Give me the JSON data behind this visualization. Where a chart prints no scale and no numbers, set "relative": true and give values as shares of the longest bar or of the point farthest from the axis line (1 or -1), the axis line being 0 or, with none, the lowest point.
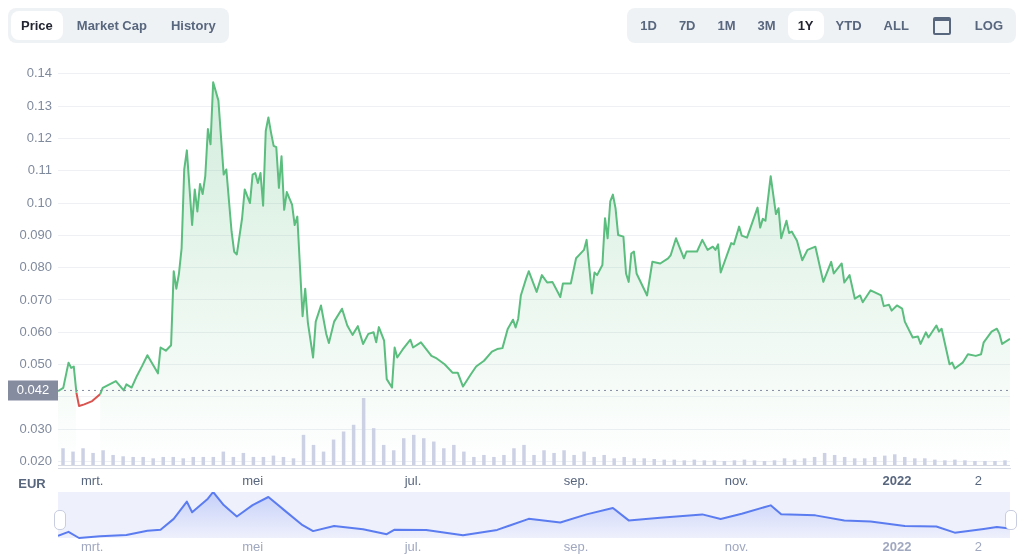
{
  "chart_data": [
    {
      "type": "area",
      "ylabel": "EUR",
      "annotations": [
        "Price",
        "Market Cap",
        "History",
        "1D",
        "7D",
        "1M",
        "3M",
        "1Y",
        "YTD",
        "ALL",
        "LOG"
      ],
      "xlim": [
        "2021-02-16",
        "2022-02-13"
      ],
      "xticks": [
        {
          "value": "2021-03-01",
          "label": "mrt."
        },
        {
          "value": "2021-05-01",
          "label": "mei"
        },
        {
          "value": "2021-07-01",
          "label": "jul."
        },
        {
          "value": "2021-09-01",
          "label": "sep."
        },
        {
          "value": "2021-11-01",
          "label": "nov."
        },
        {
          "value": "2022-01-01",
          "label": "2022"
        },
        {
          "value": "2022-02-01",
          "label": "2"
        }
      ],
      "ylim": [
        0.018,
        0.14
      ],
      "yticks": [
        {
          "value": 0.02,
          "label": "0.020"
        },
        {
          "value": 0.03,
          "label": "0.030"
        },
        {
          "value": 0.04,
          "label": null
        },
        {
          "value": 0.05,
          "label": "0.050"
        },
        {
          "value": 0.06,
          "label": "0.060"
        },
        {
          "value": 0.07,
          "label": "0.070"
        },
        {
          "value": 0.08,
          "label": "0.080"
        },
        {
          "value": 0.09,
          "label": "0.090"
        },
        {
          "value": 0.1,
          "label": "0.10"
        },
        {
          "value": 0.11,
          "label": "0.11"
        },
        {
          "value": 0.12,
          "label": "0.12"
        },
        {
          "value": 0.13,
          "label": "0.13"
        },
        {
          "value": 0.14,
          "label": "0.14"
        }
      ],
      "grid": "y",
      "legend": false,
      "ref_lines": [
        {
          "axis": "y",
          "value": 0.042,
          "label": "0.042",
          "color": "#858ca0",
          "line_style": "dotted"
        }
      ],
      "series": [
        {
          "type": "area",
          "color": "#5bbd7e",
          "x": [
            "2021-02-16",
            "2021-02-18",
            "2021-02-20",
            "2021-02-21",
            "2021-02-22",
            "2021-02-23",
            "2021-02-24",
            "2021-02-26",
            "2021-03-01",
            "2021-03-04",
            "2021-03-05",
            "2021-03-10",
            "2021-03-13",
            "2021-03-14",
            "2021-03-16",
            "2021-03-18",
            "2021-03-20",
            "2021-03-22",
            "2021-03-24",
            "2021-03-26",
            "2021-03-27",
            "2021-03-29",
            "2021-03-31",
            "2021-04-01",
            "2021-04-02",
            "2021-04-03",
            "2021-04-04",
            "2021-04-05",
            "2021-04-06",
            "2021-04-08",
            "2021-04-09",
            "2021-04-10",
            "2021-04-11",
            "2021-04-12",
            "2021-04-13",
            "2021-04-14",
            "2021-04-15",
            "2021-04-16",
            "2021-04-18",
            "2021-04-20",
            "2021-04-21",
            "2021-04-23",
            "2021-04-24",
            "2021-04-25",
            "2021-04-27",
            "2021-04-28",
            "2021-04-30",
            "2021-05-01",
            "2021-05-02",
            "2021-05-03",
            "2021-05-04",
            "2021-05-05",
            "2021-05-06",
            "2021-05-07",
            "2021-05-08",
            "2021-05-09",
            "2021-05-10",
            "2021-05-11",
            "2021-05-12",
            "2021-05-13",
            "2021-05-14",
            "2021-05-16",
            "2021-05-17",
            "2021-05-18",
            "2021-05-20",
            "2021-05-21",
            "2021-05-22",
            "2021-05-24",
            "2021-05-25",
            "2021-05-27",
            "2021-05-29",
            "2021-05-30",
            "2021-06-01",
            "2021-06-04",
            "2021-06-06",
            "2021-06-08",
            "2021-06-10",
            "2021-06-12",
            "2021-06-14",
            "2021-06-16",
            "2021-06-17",
            "2021-06-18",
            "2021-06-20",
            "2021-06-21",
            "2021-06-23",
            "2021-06-24",
            "2021-06-25",
            "2021-06-27",
            "2021-06-30",
            "2021-07-01",
            "2021-07-04",
            "2021-07-06",
            "2021-07-08",
            "2021-07-10",
            "2021-07-13",
            "2021-07-16",
            "2021-07-18",
            "2021-07-20",
            "2021-07-23",
            "2021-07-25",
            "2021-07-28",
            "2021-07-31",
            "2021-08-02",
            "2021-08-04",
            "2021-08-06",
            "2021-08-08",
            "2021-08-09",
            "2021-08-10",
            "2021-08-11",
            "2021-08-13",
            "2021-08-14",
            "2021-08-17",
            "2021-08-19",
            "2021-08-21",
            "2021-08-23",
            "2021-08-26",
            "2021-08-27",
            "2021-08-30",
            "2021-09-01",
            "2021-09-04",
            "2021-09-05",
            "2021-09-07",
            "2021-09-08",
            "2021-09-09",
            "2021-09-11",
            "2021-09-12",
            "2021-09-13",
            "2021-09-14",
            "2021-09-15",
            "2021-09-16",
            "2021-09-17",
            "2021-09-19",
            "2021-09-20",
            "2021-09-21",
            "2021-09-22",
            "2021-09-23",
            "2021-09-24",
            "2021-09-28",
            "2021-09-30",
            "2021-10-03",
            "2021-10-06",
            "2021-10-07",
            "2021-10-09",
            "2021-10-12",
            "2021-10-13",
            "2021-10-17",
            "2021-10-19",
            "2021-10-21",
            "2021-10-23",
            "2021-10-24",
            "2021-10-25",
            "2021-10-26",
            "2021-10-30",
            "2021-10-31",
            "2021-11-02",
            "2021-11-03",
            "2021-11-05",
            "2021-11-09",
            "2021-11-10",
            "2021-11-11",
            "2021-11-12",
            "2021-11-14",
            "2021-11-16",
            "2021-11-17",
            "2021-11-18",
            "2021-11-20",
            "2021-11-21",
            "2021-11-22",
            "2021-11-24",
            "2021-11-26",
            "2021-11-28",
            "2021-12-01",
            "2021-12-04",
            "2021-12-07",
            "2021-12-08",
            "2021-12-11",
            "2021-12-12",
            "2021-12-14",
            "2021-12-16",
            "2021-12-18",
            "2021-12-19",
            "2021-12-22",
            "2021-12-24",
            "2021-12-26",
            "2021-12-27",
            "2021-12-29",
            "2021-12-30",
            "2022-01-01",
            "2022-01-03",
            "2022-01-04",
            "2022-01-07",
            "2022-01-09",
            "2022-01-10",
            "2022-01-12",
            "2022-01-13",
            "2022-01-16",
            "2022-01-17",
            "2022-01-18",
            "2022-01-21",
            "2022-01-22",
            "2022-01-23",
            "2022-01-26",
            "2022-01-28",
            "2022-01-31",
            "2022-02-02",
            "2022-02-03",
            "2022-02-06",
            "2022-02-08",
            "2022-02-09",
            "2022-02-10",
            "2022-02-13"
          ],
          "values": [
            0.0418,
            0.0428,
            0.0506,
            0.049,
            0.0494,
            0.0413,
            null,
            null,
            null,
            0.0408,
            0.0428,
            0.0449,
            0.042,
            0.0439,
            0.0429,
            0.0465,
            0.0496,
            0.0529,
            0.0501,
            0.0473,
            0.0553,
            0.0543,
            0.056,
            0.0789,
            0.0735,
            0.0782,
            0.086,
            0.1104,
            0.1163,
            0.0932,
            0.1042,
            0.0974,
            0.1059,
            0.1028,
            0.1083,
            0.1229,
            0.1182,
            0.1374,
            0.1317,
            0.1088,
            0.1104,
            0.0912,
            0.0849,
            0.0841,
            0.0953,
            0.1042,
            0.1,
            0.1088,
            0.1093,
            0.1062,
            0.1093,
            0.0992,
            0.1223,
            0.1265,
            0.1218,
            0.1177,
            0.1173,
            0.1047,
            0.1145,
            0.0979,
            0.1034,
            0.0995,
            0.0932,
            0.0958,
            0.065,
            0.0735,
            0.0631,
            0.0522,
            0.0633,
            0.0683,
            0.0595,
            0.0567,
            0.0633,
            0.0673,
            0.0621,
            0.0592,
            0.0619,
            0.0564,
            0.0595,
            0.06,
            0.0569,
            0.0616,
            0.0574,
            0.0455,
            0.0429,
            0.0553,
            0.0522,
            0.0546,
            0.0577,
            0.0553,
            0.0569,
            0.0548,
            0.0527,
            0.0519,
            0.0501,
            0.0475,
            0.0475,
            0.0432,
            0.047,
            0.0494,
            0.0512,
            0.054,
            0.0548,
            0.0551,
            0.061,
            0.0639,
            0.0615,
            0.0642,
            0.0714,
            0.0766,
            0.0789,
            0.0725,
            0.0777,
            0.0754,
            0.0756,
            0.0709,
            0.0751,
            0.0751,
            0.0829,
            0.0855,
            0.0886,
            0.072,
            0.0785,
            0.0777,
            0.0808,
            0.0953,
            0.0891,
            0.1005,
            0.1026,
            0.0984,
            0.0901,
            0.0896,
            0.0782,
            0.0756,
            0.0844,
            0.085,
            0.0782,
            0.0714,
            0.0818,
            0.0813,
            0.0829,
            0.0839,
            0.0891,
            0.0829,
            0.085,
            0.085,
            0.0886,
            0.0855,
            0.0865,
            0.0855,
            0.0872,
            0.0785,
            0.0876,
            0.0872,
            0.0927,
            0.0899,
            0.0893,
            0.0986,
            0.0924,
            0.0951,
            0.0945,
            0.1083,
            0.0966,
            0.0984,
            0.0891,
            0.0945,
            0.0907,
            0.0912,
            0.0883,
            0.0823,
            0.0855,
            0.0865,
            0.0756,
            0.0818,
            0.0782,
            0.0813,
            0.0754,
            0.0777,
            0.0704,
            0.0714,
            0.0693,
            0.073,
            0.0722,
            0.0714,
            0.0681,
            0.0685,
            0.0667,
            0.0683,
            0.0673,
            0.0633,
            0.0584,
            0.0587,
            0.0564,
            0.06,
            0.0584,
            0.0621,
            0.0602,
            0.0611,
            0.0501,
            0.0506,
            0.0488,
            0.0506,
            0.0532,
            0.0527,
            0.0532,
            0.0569,
            0.0602,
            0.0611,
            0.0595,
            0.0564,
            0.058
          ]
        },
        {
          "type": "line",
          "color": "#d9534f",
          "x": [
            "2021-02-23",
            "2021-02-24",
            "2021-02-26",
            "2021-03-01",
            "2021-03-04"
          ],
          "values": [
            0.0413,
            0.0372,
            0.0377,
            0.0387,
            0.0408
          ]
        }
      ]
    },
    {
      "type": "bar",
      "relative": true,
      "color": "#cdd1e4",
      "categories": [
        null,
        null,
        null,
        null,
        null,
        null,
        null,
        null,
        null,
        null,
        null,
        null,
        null,
        null,
        null,
        null,
        null,
        null,
        null,
        null,
        null,
        null,
        null,
        null,
        null,
        null,
        null,
        null,
        null,
        null,
        null,
        null,
        null,
        null,
        null,
        null,
        null,
        null,
        null,
        null,
        null,
        null,
        null,
        null,
        null,
        null,
        null,
        null,
        null,
        null,
        null,
        null,
        null,
        null,
        null,
        null,
        null,
        null,
        null,
        null,
        null,
        null,
        null,
        null,
        null,
        null,
        null,
        null,
        null,
        null,
        null,
        null,
        null,
        null,
        null,
        null,
        null,
        null,
        null,
        null,
        null,
        null,
        null,
        null,
        null,
        null,
        null,
        null,
        null,
        null,
        null,
        null,
        null,
        null,
        null
      ],
      "values": [
        0.25,
        0.2,
        0.25,
        0.18,
        0.22,
        0.15,
        0.13,
        0.12,
        0.12,
        0.1,
        0.12,
        0.12,
        0.1,
        0.12,
        0.12,
        0.12,
        0.2,
        0.12,
        0.18,
        0.12,
        0.12,
        0.14,
        0.12,
        0.1,
        0.45,
        0.3,
        0.2,
        0.38,
        0.5,
        0.6,
        1,
        0.55,
        0.3,
        0.22,
        0.4,
        0.45,
        0.4,
        0.35,
        0.25,
        0.3,
        0.2,
        0.12,
        0.15,
        0.12,
        0.15,
        0.25,
        0.3,
        0.15,
        0.22,
        0.18,
        0.22,
        0.15,
        0.2,
        0.12,
        0.15,
        0.1,
        0.12,
        0.1,
        0.1,
        0.09,
        0.08,
        0.08,
        0.07,
        0.08,
        0.07,
        0.07,
        0.06,
        0.07,
        0.08,
        0.07,
        0.06,
        0.07,
        0.1,
        0.08,
        0.1,
        0.12,
        0.18,
        0.15,
        0.12,
        0.1,
        0.1,
        0.12,
        0.14,
        0.16,
        0.12,
        0.1,
        0.1,
        0.08,
        0.07,
        0.08,
        0.07,
        0.06,
        0.06,
        0.06,
        0.07
      ]
    },
    {
      "type": "area",
      "relative": true,
      "color": "#5b7cf0",
      "tick_labels": "x",
      "xlim": [
        "2021-02-16",
        "2022-02-13"
      ],
      "xticks": [
        {
          "value": "2021-03-01",
          "label": "mrt."
        },
        {
          "value": "2021-05-01",
          "label": "mei"
        },
        {
          "value": "2021-07-01",
          "label": "jul."
        },
        {
          "value": "2021-09-01",
          "label": "sep."
        },
        {
          "value": "2021-11-01",
          "label": "nov."
        },
        {
          "value": "2022-01-01",
          "label": "2022"
        },
        {
          "value": "2022-02-01",
          "label": "2"
        }
      ],
      "x": [
        "2021-02-16",
        "2021-02-20",
        "2021-02-24",
        "2021-03-04",
        "2021-03-14",
        "2021-03-22",
        "2021-03-27",
        "2021-04-01",
        "2021-04-06",
        "2021-04-08",
        "2021-04-14",
        "2021-04-16",
        "2021-04-20",
        "2021-04-25",
        "2021-05-01",
        "2021-05-07",
        "2021-05-13",
        "2021-05-20",
        "2021-05-24",
        "2021-06-01",
        "2021-06-12",
        "2021-06-21",
        "2021-06-24",
        "2021-07-06",
        "2021-07-20",
        "2021-08-02",
        "2021-08-14",
        "2021-08-26",
        "2021-09-05",
        "2021-09-15",
        "2021-09-21",
        "2021-10-03",
        "2021-10-19",
        "2021-10-26",
        "2021-11-03",
        "2021-11-14",
        "2021-11-18",
        "2021-12-01",
        "2021-12-12",
        "2021-12-22",
        "2022-01-04",
        "2022-01-16",
        "2022-01-23",
        "2022-02-03",
        "2022-02-08",
        "2022-02-13"
      ],
      "values": [
        0.046,
        0.134,
        0,
        0.036,
        0.067,
        0.157,
        0.181,
        0.416,
        0.79,
        0.559,
        0.855,
        1,
        0.715,
        0.468,
        0.715,
        0.891,
        0.606,
        0.278,
        0.15,
        0.26,
        0.192,
        0.083,
        0.181,
        0.176,
        0.06,
        0.176,
        0.416,
        0.336,
        0.513,
        0.653,
        0.383,
        0.44,
        0.513,
        0.412,
        0.526,
        0.71,
        0.518,
        0.492,
        0.381,
        0.357,
        0.26,
        0.249,
        0.116,
        0.197,
        0.239,
        0.208
      ]
    }
  ]
}
